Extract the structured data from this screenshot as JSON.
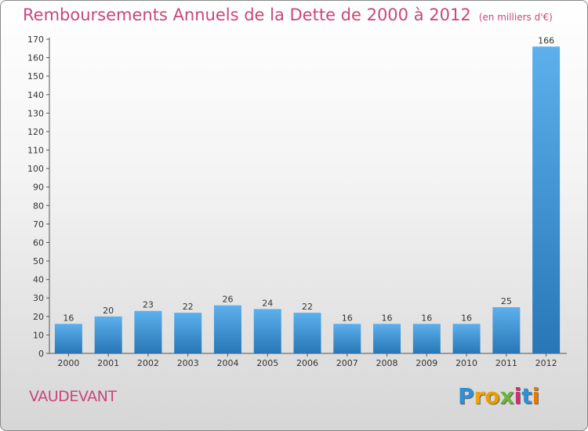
{
  "header": {
    "title": "Remboursements Annuels de la Dette de 2000 à 2012",
    "unit": "(en milliers d'€)"
  },
  "footer": {
    "commune": "VAUDEVANT",
    "logo_text": "Proxiti"
  },
  "colors": {
    "title": "#c8477c",
    "bar_top": "#5aaeea",
    "bar_bottom": "#2a78b8"
  },
  "chart_data": {
    "type": "bar",
    "title": "Remboursements Annuels de la Dette de 2000 à 2012",
    "categories": [
      "2000",
      "2001",
      "2002",
      "2003",
      "2004",
      "2005",
      "2006",
      "2007",
      "2008",
      "2009",
      "2010",
      "2011",
      "2012"
    ],
    "values": [
      16,
      20,
      23,
      22,
      26,
      24,
      22,
      16,
      16,
      16,
      16,
      25,
      166
    ],
    "ylim": [
      0,
      170
    ],
    "yticks": [
      0,
      10,
      20,
      30,
      40,
      50,
      60,
      70,
      80,
      90,
      100,
      110,
      120,
      130,
      140,
      150,
      160,
      170
    ],
    "grid": false,
    "data_labels": true
  }
}
